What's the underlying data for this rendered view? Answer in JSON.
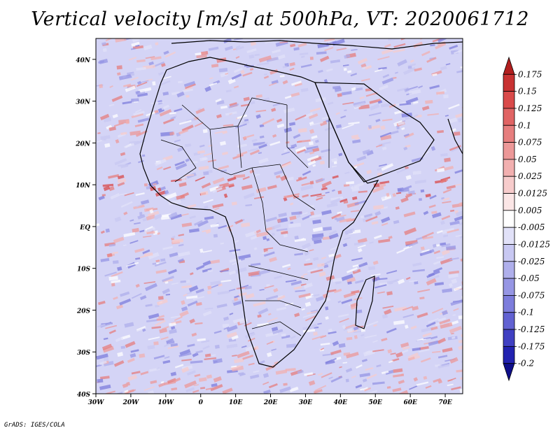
{
  "title": "Vertical velocity [m/s] at 500hPa, VT: 2020061712",
  "credit": "GrADS: IGES/COLA",
  "lat_labels": [
    "40N",
    "30N",
    "20N",
    "10N",
    "EQ",
    "10S",
    "20S",
    "30S",
    "40S"
  ],
  "lon_labels": [
    "30W",
    "20W",
    "10W",
    "0",
    "10E",
    "20E",
    "30E",
    "40E",
    "50E",
    "60E",
    "70E"
  ],
  "chart_data": {
    "type": "heatmap",
    "title": "Vertical velocity [m/s] at 500hPa, VT: 2020061712",
    "variable": "Vertical velocity",
    "units": "m/s",
    "level": "500hPa",
    "valid_time": "2020061712",
    "x_range_deg": [
      -30,
      75
    ],
    "y_range_deg": [
      -40,
      45
    ],
    "colorbar": {
      "levels": [
        "0.175",
        "0.15",
        "0.125",
        "0.1",
        "0.075",
        "0.05",
        "0.025",
        "0.0125",
        "0.005",
        "-0.005",
        "-0.0125",
        "-0.025",
        "-0.05",
        "-0.075",
        "-0.1",
        "-0.125",
        "-0.175",
        "-0.2"
      ],
      "colors": [
        "#b21f1f",
        "#c83232",
        "#d94a4a",
        "#e06464",
        "#e67e7e",
        "#ec9898",
        "#f2b0b0",
        "#f7cccc",
        "#fbe6e6",
        "#ffffff",
        "#e1e1f8",
        "#c8c8f2",
        "#afafeb",
        "#9696e4",
        "#7d7ddc",
        "#6262d2",
        "#4040c2",
        "#2222b0",
        "#0e0e8a"
      ]
    }
  }
}
